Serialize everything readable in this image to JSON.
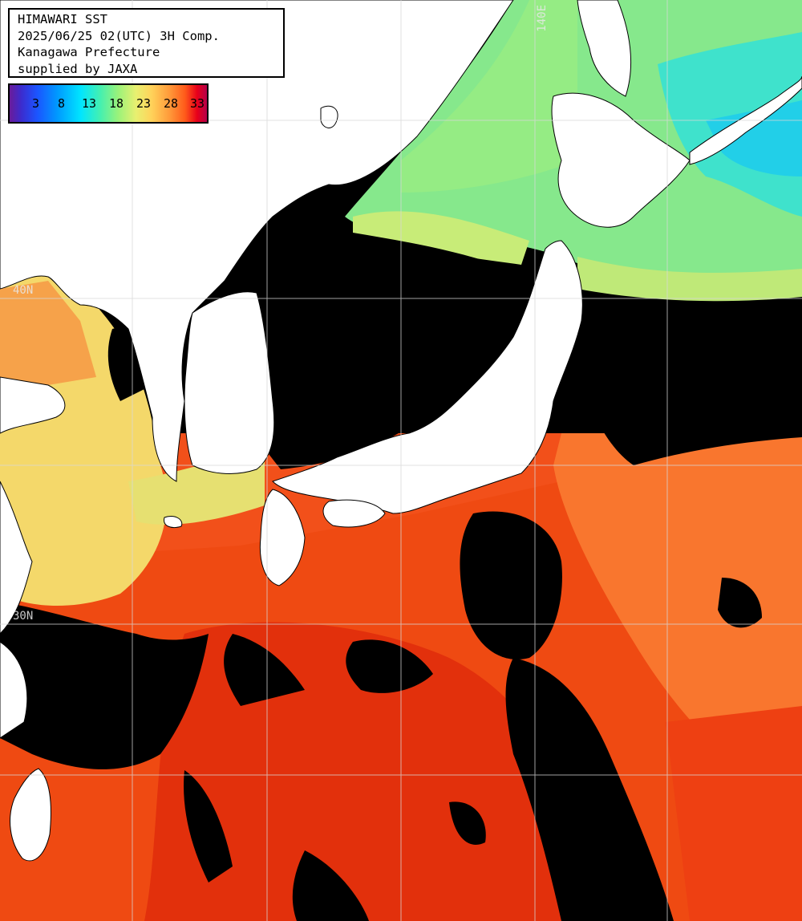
{
  "title": {
    "line1": "HIMAWARI SST",
    "line2": "2025/06/25 02(UTC) 3H Comp.",
    "line3": "Kanagawa Prefecture",
    "line4": "supplied by JAXA"
  },
  "legend": {
    "ticks": [
      "3",
      "8",
      "13",
      "18",
      "23",
      "28",
      "33"
    ],
    "units_hint": "sea surface temperature scale"
  },
  "grid_labels": {
    "lon_140": "140E",
    "lat_40": "40N",
    "lat_30": "30N"
  },
  "colors": {
    "cloud_mask": "#000000",
    "land": "#ffffff",
    "grid": "#d0d0d0",
    "sea_cold": "#1ee0f0",
    "sea_cool": "#7fe88a",
    "sea_mild": "#f0e27a",
    "sea_warm": "#ff8a3a",
    "sea_hot": "#f04510",
    "sea_very_hot": "#e02a0a"
  }
}
